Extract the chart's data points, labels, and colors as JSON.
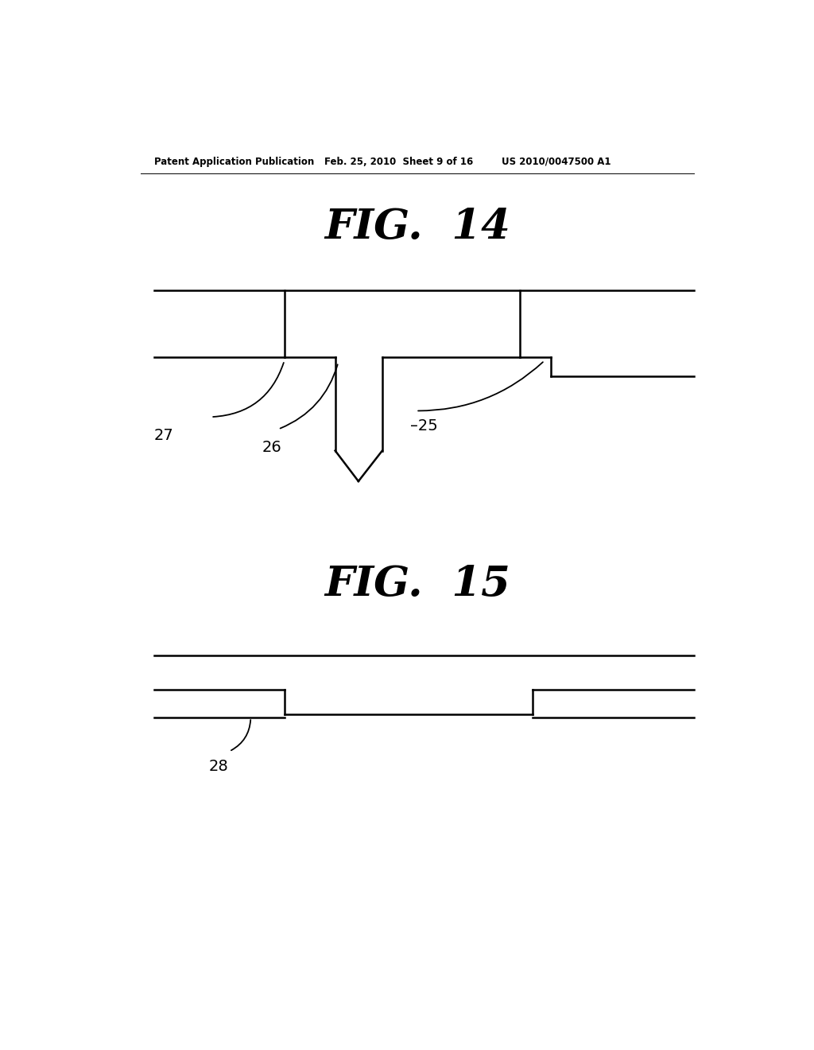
{
  "bg_color": "#ffffff",
  "line_color": "#000000",
  "line_width": 1.8,
  "header_text": "Patent Application Publication",
  "header_date": "Feb. 25, 2010  Sheet 9 of 16",
  "header_patent": "US 2010/0047500 A1",
  "fig14_label": "FIG.  14",
  "fig15_label": "FIG.  15",
  "label_25": "25",
  "label_26": "26",
  "label_27": "27",
  "label_28": "28"
}
